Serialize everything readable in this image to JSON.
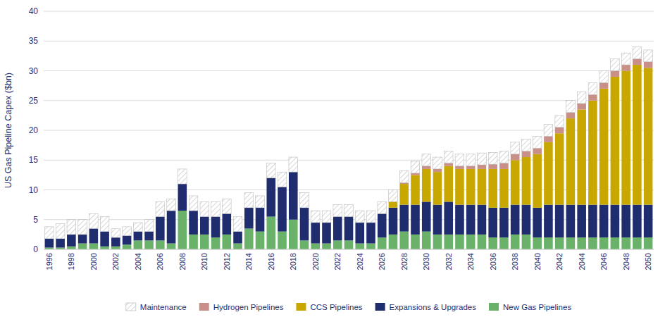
{
  "chart_data": {
    "type": "bar",
    "stacked": true,
    "y_label": "US Gas Pipeline Capex ($bn)",
    "categories": [
      "1996",
      null,
      "1998",
      null,
      "2000",
      null,
      "2002",
      null,
      "2004",
      null,
      "2006",
      null,
      "2008",
      null,
      "2010",
      null,
      "2012",
      null,
      "2014",
      null,
      "2016",
      null,
      "2018",
      null,
      "2020",
      null,
      "2022",
      null,
      "2024",
      null,
      "2026",
      null,
      "2028",
      null,
      "2030",
      null,
      "2032",
      null,
      "2034",
      null,
      "2036",
      null,
      "2038",
      null,
      "2040",
      null,
      "2042",
      null,
      "2044",
      null,
      "2046",
      null,
      "2048",
      null,
      "2050"
    ],
    "series": [
      {
        "name": "New Gas Pipelines",
        "color": "#6ab26a",
        "values": [
          0.3,
          0.3,
          0.5,
          1.0,
          1.0,
          0.5,
          0.5,
          0.8,
          1.5,
          1.5,
          1.5,
          1.0,
          6.5,
          2.5,
          2.5,
          2.0,
          2.5,
          1.0,
          3.5,
          3.0,
          5.5,
          3.0,
          5.0,
          1.5,
          1.0,
          1.0,
          1.5,
          1.5,
          1.0,
          1.0,
          2.0,
          2.5,
          3.0,
          2.5,
          3.0,
          2.5,
          2.5,
          2.5,
          2.5,
          2.5,
          2.0,
          2.0,
          2.5,
          2.5,
          2.0,
          2.0,
          2.0,
          2.0,
          2.0,
          2.0,
          2.0,
          2.0,
          2.0,
          2.0,
          2.0
        ]
      },
      {
        "name": "Expansions & Upgrades",
        "color": "#1f2d6e",
        "values": [
          1.5,
          1.5,
          2.0,
          1.5,
          2.5,
          2.5,
          1.5,
          1.5,
          1.5,
          1.5,
          4.0,
          5.5,
          4.5,
          4.0,
          3.0,
          3.5,
          3.5,
          2.0,
          3.5,
          4.0,
          6.5,
          7.5,
          8.0,
          5.5,
          3.5,
          3.5,
          4.0,
          4.0,
          3.5,
          3.5,
          4.0,
          4.5,
          4.5,
          5.0,
          5.0,
          5.0,
          5.5,
          5.0,
          5.0,
          5.0,
          5.0,
          5.0,
          5.0,
          5.0,
          5.0,
          5.5,
          5.5,
          5.5,
          5.5,
          5.5,
          5.5,
          5.5,
          5.5,
          5.5,
          5.5
        ]
      },
      {
        "name": "CCS Pipelines",
        "color": "#c8a800",
        "values": [
          0.0,
          0.0,
          0.0,
          0.0,
          0.0,
          0.0,
          0.0,
          0.0,
          0.0,
          0.0,
          0.0,
          0.0,
          0.0,
          0.0,
          0.0,
          0.0,
          0.0,
          0.0,
          0.0,
          0.0,
          0.0,
          0.0,
          0.0,
          0.0,
          0.0,
          0.0,
          0.0,
          0.0,
          0.0,
          0.0,
          0.0,
          1.0,
          3.5,
          5.0,
          5.5,
          5.5,
          6.0,
          6.0,
          6.0,
          6.0,
          6.5,
          6.5,
          7.5,
          8.0,
          9.0,
          10.5,
          12.0,
          14.5,
          16.0,
          17.5,
          19.5,
          21.5,
          22.5,
          23.5,
          23.0
        ]
      },
      {
        "name": "Hydrogen Pipelines",
        "color": "#c9908a",
        "values": [
          0.0,
          0.0,
          0.0,
          0.0,
          0.0,
          0.0,
          0.0,
          0.0,
          0.0,
          0.0,
          0.0,
          0.0,
          0.0,
          0.0,
          0.0,
          0.0,
          0.0,
          0.0,
          0.0,
          0.0,
          0.0,
          0.0,
          0.0,
          0.0,
          0.0,
          0.0,
          0.0,
          0.0,
          0.0,
          0.0,
          0.0,
          0.0,
          0.2,
          0.3,
          0.5,
          0.5,
          0.5,
          0.5,
          0.5,
          0.7,
          0.8,
          1.0,
          1.0,
          1.0,
          1.0,
          1.0,
          1.0,
          1.0,
          1.0,
          1.0,
          1.0,
          1.0,
          1.0,
          1.0,
          1.0
        ]
      },
      {
        "name": "Maintenance",
        "color": "#ffffff",
        "values": [
          2.0,
          2.5,
          2.5,
          2.5,
          2.5,
          2.5,
          1.5,
          1.5,
          1.5,
          2.0,
          2.5,
          2.0,
          2.5,
          2.5,
          2.5,
          2.5,
          2.5,
          2.5,
          2.5,
          2.0,
          2.5,
          2.5,
          2.5,
          2.5,
          2.0,
          2.0,
          2.0,
          2.0,
          2.0,
          2.0,
          2.0,
          2.0,
          2.0,
          2.0,
          2.0,
          2.0,
          2.0,
          2.0,
          2.0,
          2.0,
          2.0,
          2.0,
          2.0,
          2.0,
          2.0,
          2.0,
          2.0,
          2.0,
          2.0,
          2.0,
          2.0,
          2.0,
          2.0,
          2.0,
          2.0
        ]
      }
    ],
    "ylim": [
      0,
      40
    ],
    "yticks": [
      0,
      5,
      10,
      15,
      20,
      25,
      30,
      35,
      40
    ],
    "grid": true
  }
}
